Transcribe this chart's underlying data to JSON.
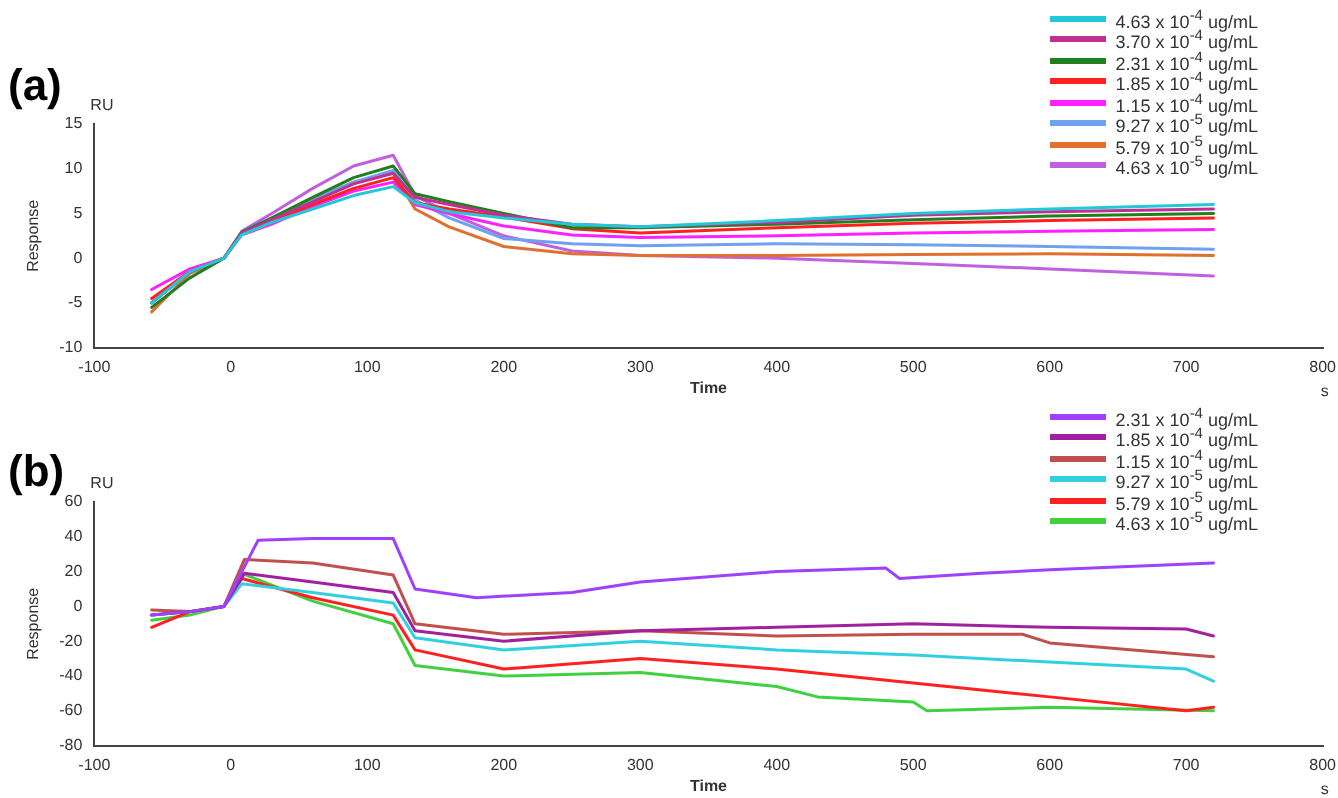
{
  "chart_data": [
    {
      "type": "line",
      "title": "(a)",
      "xlabel": "Time",
      "ylabel": "Response",
      "annotations": [
        "RU",
        "s"
      ],
      "xlim": [
        -100,
        800
      ],
      "xticks": [
        -100,
        0,
        100,
        200,
        300,
        400,
        500,
        600,
        700,
        800
      ],
      "ylim": [
        -10,
        15
      ],
      "yticks": [
        -10,
        -5,
        0,
        5,
        10,
        15
      ],
      "grid": false,
      "legend": "top right",
      "marker": "none",
      "x": [
        -58,
        -30,
        -5,
        8,
        30,
        60,
        90,
        119,
        135,
        160,
        200,
        250,
        300,
        400,
        500,
        600,
        720
      ],
      "series": [
        {
          "name": "4.63 x 10$^{-4}$ ug/mL",
          "color": "#20c8d8",
          "values": [
            -5,
            -1.5,
            0,
            2.6,
            4,
            5.5,
            7,
            8,
            6.2,
            5.2,
            4.5,
            3.8,
            3.5,
            4.2,
            5,
            5.5,
            6
          ]
        },
        {
          "name": "3.70 x 10$^{-4}$ ug/mL",
          "color": "#c03090",
          "values": [
            -5,
            -1.5,
            0,
            2.8,
            4.3,
            6.3,
            8.3,
            9.5,
            6.8,
            6,
            4.8,
            3.8,
            3.5,
            4,
            4.8,
            5.2,
            5.5
          ]
        },
        {
          "name": "2.31 x 10$^{-4}$ ug/mL",
          "color": "#208020",
          "values": [
            -5.5,
            -2.2,
            0,
            2.9,
            4.5,
            6.8,
            9,
            10.3,
            7.2,
            6.3,
            5,
            3.4,
            3.4,
            3.8,
            4.3,
            4.7,
            5
          ]
        },
        {
          "name": "1.85 x 10$^{-4}$ ug/mL",
          "color": "#ff2020",
          "values": [
            -4.5,
            -1.5,
            0,
            2.7,
            4,
            6,
            7.8,
            9,
            6.2,
            5.5,
            4.6,
            3.3,
            2.8,
            3.4,
            3.9,
            4.2,
            4.5
          ]
        },
        {
          "name": "1.15 x 10$^{-4}$ ug/mL",
          "color": "#ff20ff",
          "values": [
            -3.5,
            -1.2,
            0,
            2.6,
            3.8,
            5.8,
            7.5,
            8.5,
            6,
            5,
            3.6,
            2.6,
            2.3,
            2.5,
            2.8,
            3,
            3.2
          ]
        },
        {
          "name": "9.27 x 10$^{-5}$ ug/mL",
          "color": "#70a0f0",
          "values": [
            -5,
            -1.5,
            0,
            2.8,
            4.4,
            6.6,
            8.5,
            9.8,
            6.5,
            4.5,
            2.2,
            1.6,
            1.4,
            1.6,
            1.5,
            1.3,
            1
          ]
        },
        {
          "name": "5.79 x 10$^{-5}$ ug/mL",
          "color": "#e07030",
          "values": [
            -6,
            -1.7,
            0,
            2.8,
            4.3,
            6.5,
            8.5,
            9.5,
            5.5,
            3.5,
            1.3,
            0.5,
            0.3,
            0.3,
            0.4,
            0.5,
            0.3
          ]
        },
        {
          "name": "4.63 x 10$^{-5}$ ug/mL",
          "color": "#c060e0",
          "values": [
            -5,
            -1.5,
            0,
            3,
            5,
            7.8,
            10.3,
            11.5,
            7,
            5,
            2.5,
            0.8,
            0.3,
            0,
            -0.6,
            -1.2,
            -2
          ]
        }
      ]
    },
    {
      "type": "line",
      "title": "(b)",
      "xlabel": "Time",
      "ylabel": "Response",
      "annotations": [
        "RU",
        "s"
      ],
      "xlim": [
        -100,
        800
      ],
      "xticks": [
        -100,
        0,
        100,
        200,
        300,
        400,
        500,
        600,
        700,
        800
      ],
      "ylim": [
        -80,
        60
      ],
      "yticks": [
        -80,
        -60,
        -40,
        -20,
        0,
        20,
        40,
        60
      ],
      "grid": false,
      "legend": "top right",
      "marker": "none",
      "series": [
        {
          "name": "2.31 x 10$^{-4}$ ug/mL",
          "color": "#a040ff",
          "x": [
            -58,
            -30,
            -5,
            20,
            60,
            119,
            135,
            180,
            250,
            300,
            400,
            480,
            490,
            550,
            600,
            720
          ],
          "values": [
            -5,
            -3,
            0,
            38,
            39,
            39,
            10,
            5,
            8,
            14,
            20,
            22,
            16,
            19,
            21,
            25
          ]
        },
        {
          "name": "1.85 x 10$^{-4}$ ug/mL",
          "color": "#a020a0",
          "x": [
            -58,
            -30,
            -5,
            10,
            60,
            119,
            135,
            200,
            300,
            400,
            500,
            600,
            700,
            720
          ],
          "values": [
            -5,
            -3,
            0,
            19,
            14,
            8,
            -14,
            -20,
            -14,
            -12,
            -10,
            -12,
            -13,
            -17
          ]
        },
        {
          "name": "1.15 x 10$^{-4}$ ug/mL",
          "color": "#c0504d",
          "x": [
            -58,
            -30,
            -5,
            10,
            60,
            119,
            135,
            200,
            300,
            400,
            500,
            580,
            600,
            720
          ],
          "values": [
            -2,
            -3,
            0,
            27,
            25,
            18,
            -10,
            -16,
            -14,
            -17,
            -16,
            -16,
            -21,
            -29
          ]
        },
        {
          "name": "9.27 x 10$^{-5}$ ug/mL",
          "color": "#30d0e0",
          "x": [
            -58,
            -30,
            -5,
            8,
            60,
            119,
            135,
            200,
            300,
            400,
            500,
            600,
            700,
            720
          ],
          "values": [
            -5,
            -3,
            0,
            13,
            8,
            2,
            -18,
            -25,
            -20,
            -25,
            -28,
            -32,
            -36,
            -43
          ]
        },
        {
          "name": "5.79 x 10$^{-5}$ ug/mL",
          "color": "#ff2020",
          "x": [
            -58,
            -30,
            -5,
            8,
            60,
            119,
            135,
            200,
            300,
            400,
            500,
            600,
            700,
            720
          ],
          "values": [
            -12,
            -3,
            0,
            16,
            5,
            -5,
            -25,
            -36,
            -30,
            -36,
            -44,
            -52,
            -60,
            -58
          ]
        },
        {
          "name": "4.63 x 10$^{-5}$ ug/mL",
          "color": "#40d040",
          "x": [
            -58,
            -30,
            -5,
            8,
            60,
            119,
            135,
            200,
            300,
            400,
            430,
            500,
            510,
            600,
            720
          ],
          "values": [
            -8,
            -5,
            0,
            19,
            3,
            -10,
            -34,
            -40,
            -38,
            -46,
            -52,
            -55,
            -60,
            -58,
            -60
          ]
        }
      ]
    }
  ]
}
